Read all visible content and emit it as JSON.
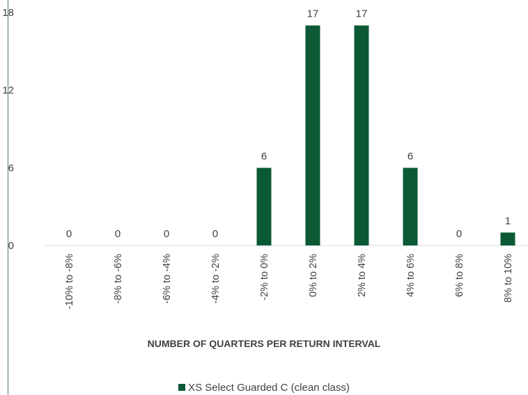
{
  "chart_data": {
    "type": "bar",
    "categories": [
      "-10% to -8%",
      "-8% to -6%",
      "-6% to -4%",
      "-4% to -2%",
      "-2% to 0%",
      "0% to 2%",
      "2% to 4%",
      "4% to 6%",
      "6% to 8%",
      "8% to 10%"
    ],
    "series": [
      {
        "name": "XS Select Guarded C (clean class)",
        "values": [
          0,
          0,
          0,
          0,
          6,
          17,
          17,
          6,
          0,
          1
        ]
      }
    ],
    "xlabel": "NUMBER OF QUARTERS PER RETURN INTERVAL",
    "ylabel": "",
    "ylim": [
      0,
      18
    ],
    "yticks": [
      0,
      6,
      12,
      18
    ],
    "grid": false,
    "data_labels": true,
    "legend_position": "bottom",
    "bar_color": "#0b5a35"
  }
}
